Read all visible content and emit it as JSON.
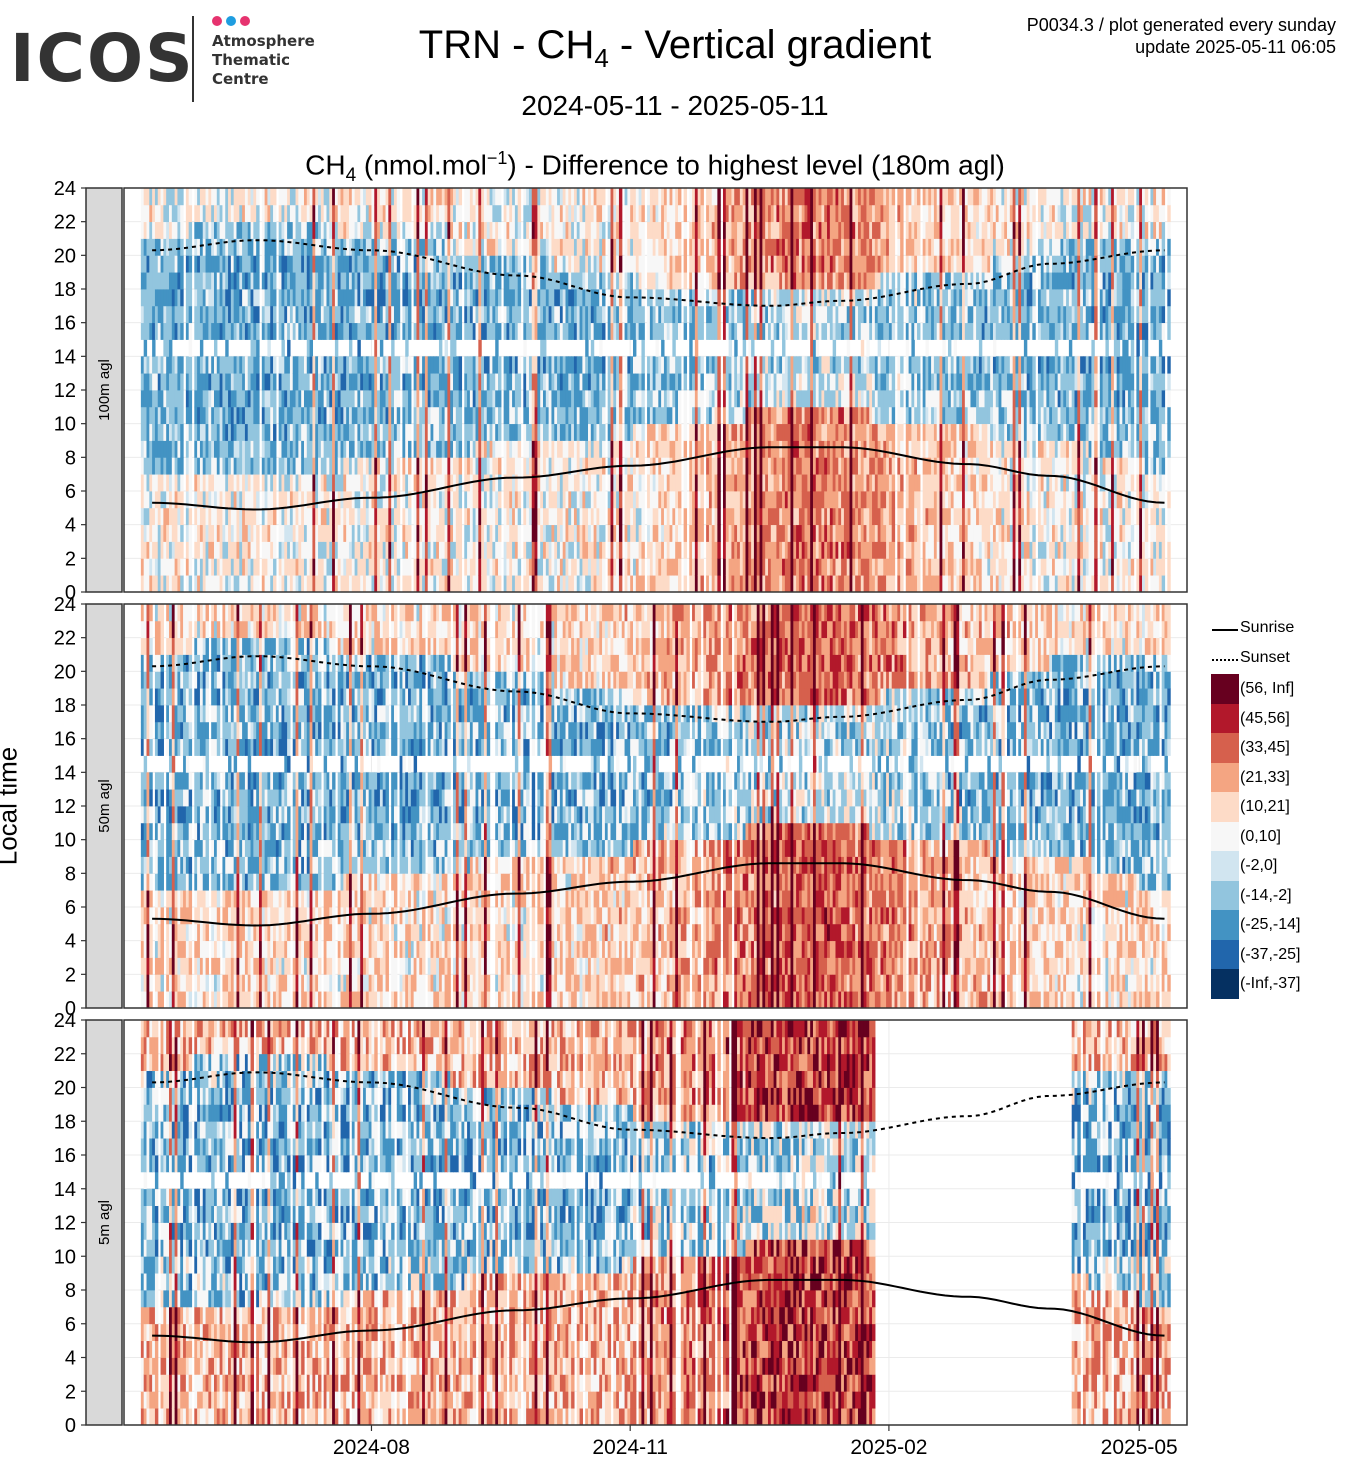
{
  "logo": {
    "main_text": "ICOS",
    "sub_lines": [
      "Atmosphere",
      "Thematic",
      "Centre"
    ],
    "dot_colors": [
      "#e6336f",
      "#1e9de0",
      "#e6336f"
    ]
  },
  "header": {
    "title_prefix": "TRN - CH",
    "title_subscript": "4",
    "title_suffix": " - Vertical gradient",
    "subtitle": "2024-05-11 - 2025-05-11",
    "meta_line1": "P0034.3 / plot generated every sunday",
    "meta_line2": "update  2025-05-11 06:05"
  },
  "plot_title": {
    "prefix": "CH",
    "subscript": "4",
    "unit_open": " (nmol.mol",
    "superscript": "−1",
    "suffix": ") - Difference to highest level (180m agl)"
  },
  "legend": {
    "sunrise_label": "Sunrise",
    "sunset_label": "Sunset",
    "bins": [
      {
        "label": "(56, Inf]",
        "color": "#67001f"
      },
      {
        "label": "(45,56]",
        "color": "#b2182b"
      },
      {
        "label": "(33,45]",
        "color": "#d6604d"
      },
      {
        "label": "(21,33]",
        "color": "#f4a582"
      },
      {
        "label": "(10,21]",
        "color": "#fddbc7"
      },
      {
        "label": "(0,10]",
        "color": "#f7f7f7"
      },
      {
        "label": "(-2,0]",
        "color": "#d1e5f0"
      },
      {
        "label": "(-14,-2]",
        "color": "#92c5de"
      },
      {
        "label": "(-25,-14]",
        "color": "#4393c3"
      },
      {
        "label": "(-37,-25]",
        "color": "#2166ac"
      },
      {
        "label": "(-Inf,-37]",
        "color": "#053061"
      }
    ]
  },
  "chart_data": {
    "type": "heatmap",
    "ylabel": "Local time",
    "xlabel": "",
    "x_range": [
      "2024-05-11",
      "2025-05-11"
    ],
    "y_range": [
      0,
      24
    ],
    "y_ticks": [
      0,
      2,
      4,
      6,
      8,
      10,
      12,
      14,
      16,
      18,
      20,
      22,
      24
    ],
    "x_ticks": [
      "2024-08",
      "2024-11",
      "2025-02",
      "2025-05"
    ],
    "panels": [
      {
        "label": "100m agl",
        "missing_ranges": []
      },
      {
        "label": "50m agl",
        "missing_ranges": []
      },
      {
        "label": "5m agl",
        "missing_ranges": [
          [
            "2025-01-27",
            "2025-04-05"
          ]
        ]
      }
    ],
    "sunrise": {
      "dates": [
        "2024-05-15",
        "2024-06-21",
        "2024-08-01",
        "2024-09-22",
        "2024-11-01",
        "2024-12-21",
        "2025-01-15",
        "2025-03-01",
        "2025-03-30",
        "2025-05-10"
      ],
      "hours": [
        5.3,
        4.9,
        5.6,
        6.8,
        7.5,
        8.6,
        8.6,
        7.6,
        6.9,
        5.3
      ]
    },
    "sunset": {
      "dates": [
        "2024-05-15",
        "2024-06-21",
        "2024-08-01",
        "2024-09-22",
        "2024-11-01",
        "2024-12-21",
        "2025-01-15",
        "2025-03-01",
        "2025-03-30",
        "2025-05-10"
      ],
      "hours": [
        20.3,
        20.9,
        20.3,
        18.8,
        17.5,
        17.0,
        17.3,
        18.3,
        19.5,
        20.3
      ]
    },
    "pattern_summary": {
      "night_and_morning_hours": "mostly positive (red)",
      "afternoon_hours": "near zero to negative (blue)",
      "highest_positive_period": "2024-12 to 2025-01"
    }
  }
}
